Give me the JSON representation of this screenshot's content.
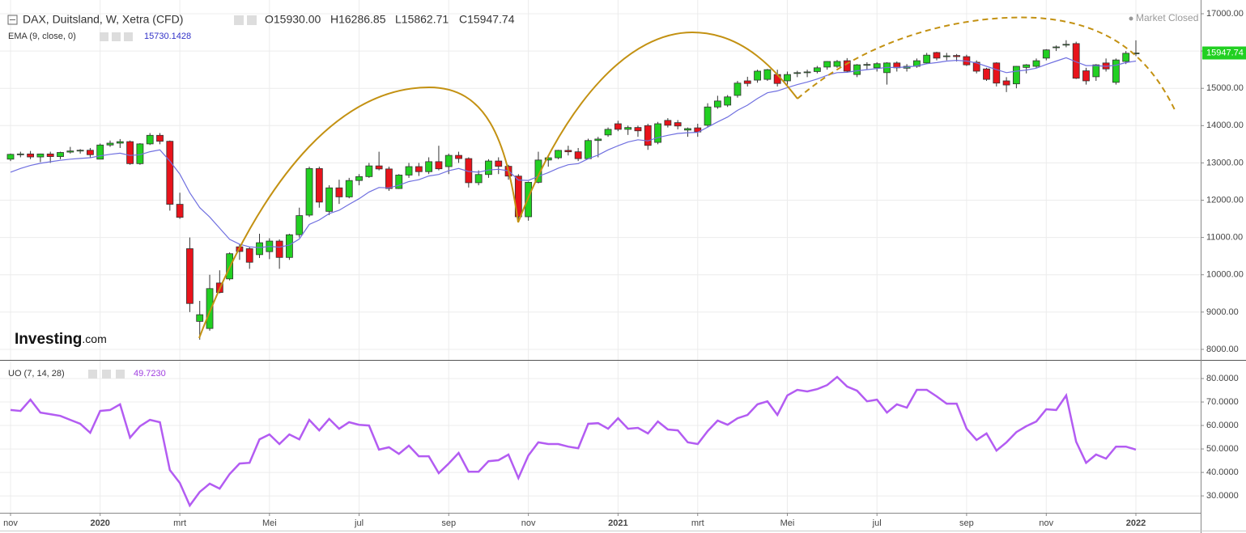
{
  "chart_data": [
    {
      "type": "candlestick",
      "title": "DAX, Duitsland, W, Xetra (CFD)",
      "status": "Market Closed",
      "ohlc_labels": [
        "O15930.00",
        "H16286.85",
        "L15862.71",
        "C15947.74"
      ],
      "brand": "Investing",
      "brand_suffix": ".com",
      "up_color": "#22d022",
      "down_color": "#e8131b",
      "open": [
        13100,
        13230,
        13240,
        13160,
        13240,
        13170,
        13290,
        13320,
        13340,
        13100,
        13480,
        13530,
        13570,
        12980,
        13510,
        13740,
        13580,
        11890,
        10700,
        8750,
        8560,
        9780,
        9890,
        10750,
        10700,
        10540,
        10620,
        10904,
        10465,
        11074,
        11600,
        12848,
        11700,
        12331,
        12089,
        12528,
        12633,
        12920,
        12838,
        12313,
        12674,
        12901,
        12765,
        13033,
        12900,
        13202,
        13116,
        12469,
        12689,
        13051,
        12909,
        12646,
        11556,
        12480,
        13077,
        13137,
        13336,
        13298,
        13114,
        13600,
        13750,
        14050,
        13900,
        13950,
        14000,
        13550,
        14140,
        14080,
        13880,
        13940,
        14010,
        14500,
        14550,
        14810,
        15200,
        15220,
        15240,
        15370,
        15200,
        15400,
        15420,
        15450,
        15570,
        15590,
        15740,
        15370,
        15630,
        15550,
        15420,
        15680,
        15540,
        15590,
        15680,
        15960,
        15850,
        15880,
        15850,
        15700,
        15520,
        15680,
        15200,
        15120,
        15560,
        15590,
        15810,
        16100,
        16170,
        16200,
        15470,
        15310,
        15680,
        15160,
        15720,
        15930
      ],
      "high": [
        13250,
        13300,
        13320,
        13250,
        13300,
        13300,
        13430,
        13370,
        13400,
        13520,
        13600,
        13640,
        13600,
        13530,
        13800,
        13800,
        13600,
        12200,
        11000,
        9300,
        10000,
        10120,
        10600,
        10820,
        10750,
        11100,
        10980,
        10950,
        11100,
        11800,
        12900,
        12900,
        12400,
        12550,
        12600,
        12700,
        13000,
        13300,
        12900,
        12700,
        13000,
        13000,
        13150,
        13460,
        13250,
        13300,
        13150,
        12800,
        13100,
        13150,
        12950,
        12700,
        12500,
        13300,
        13200,
        13350,
        13460,
        13400,
        13650,
        13700,
        13950,
        14130,
        14000,
        14000,
        14050,
        14100,
        14200,
        14150,
        13950,
        14050,
        14600,
        14800,
        14820,
        15200,
        15310,
        15500,
        15520,
        15500,
        15450,
        15470,
        15500,
        15600,
        15730,
        15760,
        15810,
        15650,
        15700,
        15700,
        15700,
        15720,
        15650,
        15800,
        15950,
        15980,
        15950,
        15920,
        15900,
        15750,
        15550,
        15700,
        15300,
        15600,
        15650,
        15800,
        16050,
        16150,
        16290,
        16250,
        15550,
        15650,
        15800,
        15800,
        16000,
        16286.85
      ],
      "low": [
        13050,
        13150,
        13100,
        13020,
        13000,
        13100,
        13250,
        13250,
        13150,
        13100,
        13430,
        13400,
        12950,
        12950,
        13480,
        13500,
        11720,
        11500,
        9000,
        8260,
        8500,
        9500,
        9850,
        10400,
        10160,
        10450,
        10420,
        10160,
        10400,
        11000,
        11550,
        11800,
        11600,
        11900,
        12050,
        12400,
        12600,
        12800,
        12250,
        12300,
        12600,
        12650,
        12700,
        12800,
        12700,
        13000,
        12340,
        12400,
        12600,
        12700,
        12550,
        11450,
        11450,
        12450,
        12900,
        13100,
        13200,
        13050,
        13100,
        13150,
        13700,
        13850,
        13750,
        13700,
        13350,
        13500,
        13950,
        13900,
        13700,
        13700,
        13950,
        14450,
        14500,
        14750,
        15050,
        15150,
        15200,
        15050,
        15100,
        15300,
        15300,
        15400,
        15500,
        15550,
        15420,
        15300,
        15500,
        15450,
        15100,
        15450,
        15450,
        15550,
        15650,
        15750,
        15750,
        15720,
        15600,
        15400,
        15200,
        15050,
        14900,
        15000,
        15400,
        15550,
        15750,
        16000,
        16100,
        15250,
        15100,
        15200,
        15450,
        15100,
        15650,
        15862.71
      ],
      "close": [
        13230,
        13240,
        13160,
        13240,
        13170,
        13280,
        13320,
        13340,
        13220,
        13480,
        13530,
        13570,
        12980,
        13510,
        13740,
        13580,
        11890,
        11540,
        9230,
        8930,
        9630,
        9525,
        10565,
        10625,
        10336,
        10860,
        10904,
        10465,
        11074,
        11587,
        12848,
        11949,
        12331,
        12089,
        12528,
        12633,
        12920,
        12838,
        12313,
        12674,
        12901,
        12765,
        13033,
        12842,
        13202,
        13116,
        12469,
        12689,
        13051,
        12909,
        12646,
        11556,
        12480,
        13077,
        13137,
        13336,
        13298,
        13114,
        13600,
        13640,
        13900,
        13900,
        13950,
        13860,
        13470,
        14050,
        14010,
        13990,
        13920,
        13830,
        14500,
        14660,
        14770,
        15140,
        15130,
        15460,
        15500,
        15130,
        15370,
        15420,
        15440,
        15550,
        15720,
        15720,
        15460,
        15630,
        15640,
        15660,
        15680,
        15550,
        15590,
        15740,
        15890,
        15810,
        15870,
        15850,
        15630,
        15460,
        15240,
        15140,
        15090,
        15590,
        15630,
        15740,
        16030,
        16110,
        16180,
        15270,
        15200,
        15630,
        15520,
        15760,
        15940,
        15947.74
      ],
      "series": [
        {
          "name": "EMA (9, close, 0)",
          "color": "#7070e0",
          "values": [
            12750,
            12850,
            12930,
            12990,
            13030,
            13070,
            13100,
            13120,
            13140,
            13190,
            13230,
            13260,
            13200,
            13220,
            13300,
            13350,
            13050,
            12700,
            12200,
            11800,
            11550,
            11250,
            10950,
            10820,
            10750,
            10730,
            10760,
            10740,
            10800,
            10960,
            11350,
            11470,
            11640,
            11730,
            11890,
            12040,
            12220,
            12340,
            12330,
            12400,
            12500,
            12550,
            12650,
            12690,
            12790,
            12850,
            12770,
            12750,
            12810,
            12830,
            12790,
            12540,
            12530,
            12640,
            12740,
            12860,
            12950,
            12980,
            13110,
            13210,
            13350,
            13460,
            13560,
            13620,
            13590,
            13680,
            13740,
            13790,
            13810,
            13820,
            13960,
            14100,
            14230,
            14410,
            14550,
            14730,
            14880,
            14930,
            15020,
            15100,
            15170,
            15250,
            15350,
            15420,
            15430,
            15470,
            15500,
            15530,
            15560,
            15560,
            15570,
            15600,
            15660,
            15690,
            15730,
            15750,
            15730,
            15680,
            15590,
            15500,
            15420,
            15460,
            15490,
            15540,
            15640,
            15730,
            15820,
            15710,
            15610,
            15610,
            15590,
            15620,
            15690,
            15730.1428
          ]
        }
      ],
      "ylim": [
        7717,
        17260
      ],
      "yticks": [
        {
          "value": 8000,
          "label": "8000.00"
        },
        {
          "value": 9000,
          "label": "9000.00"
        },
        {
          "value": 10000,
          "label": "10000.00"
        },
        {
          "value": 11000,
          "label": "11000.00"
        },
        {
          "value": 12000,
          "label": "12000.00"
        },
        {
          "value": 13000,
          "label": "13000.00"
        },
        {
          "value": 14000,
          "label": "14000.00"
        },
        {
          "value": 15000,
          "label": "15000.00"
        },
        {
          "value": 16000,
          "label": "16000.00"
        },
        {
          "value": 17000,
          "label": "17000.00"
        }
      ],
      "grid": true
    },
    {
      "type": "line",
      "series": [
        {
          "name": "UO (7, 14, 28)",
          "color": "#b35cf2",
          "last_label": "49.7230",
          "values": [
            66.6,
            66.2,
            71.0,
            65.5,
            64.8,
            64.1,
            62.4,
            60.7,
            56.9,
            66.2,
            66.6,
            69.0,
            54.8,
            59.7,
            62.4,
            61.4,
            41.0,
            35.5,
            25.9,
            31.7,
            35.2,
            33.1,
            39.3,
            43.8,
            44.1,
            54.1,
            56.2,
            52.1,
            56.2,
            54.1,
            62.4,
            57.9,
            62.8,
            58.6,
            61.4,
            60.3,
            60.0,
            49.7,
            50.7,
            47.9,
            51.4,
            46.9,
            46.9,
            39.7,
            43.8,
            48.3,
            40.3,
            40.3,
            44.8,
            45.2,
            47.6,
            37.6,
            47.2,
            52.8,
            52.1,
            52.1,
            51.0,
            50.3,
            60.7,
            61.0,
            58.6,
            63.1,
            58.6,
            59.0,
            56.6,
            61.7,
            58.3,
            57.9,
            52.8,
            52.1,
            57.6,
            62.1,
            60.3,
            63.1,
            64.5,
            69.0,
            70.3,
            64.5,
            72.8,
            75.2,
            74.5,
            75.5,
            77.2,
            80.7,
            76.6,
            74.8,
            70.3,
            71.0,
            65.5,
            69.0,
            67.6,
            75.2,
            75.2,
            72.4,
            69.3,
            69.3,
            58.6,
            53.8,
            56.6,
            49.3,
            52.8,
            57.2,
            59.7,
            61.7,
            66.9,
            66.6,
            72.8,
            53.1,
            44.1,
            47.6,
            45.9,
            51.0,
            51.0,
            49.723
          ]
        }
      ],
      "categories": [
        "nov",
        null,
        null,
        null,
        null,
        null,
        null,
        null,
        null,
        "2020",
        null,
        null,
        null,
        null,
        null,
        null,
        null,
        "mrt",
        null,
        null,
        null,
        null,
        null,
        null,
        null,
        null,
        "Mei",
        null,
        null,
        null,
        null,
        null,
        null,
        null,
        null,
        "jul",
        null,
        null,
        null,
        null,
        null,
        null,
        null,
        null,
        "sep",
        null,
        null,
        null,
        null,
        null,
        null,
        null,
        "nov",
        null,
        null,
        null,
        null,
        null,
        null,
        null,
        null,
        "2021",
        null,
        null,
        null,
        null,
        null,
        null,
        null,
        "mrt",
        null,
        null,
        null,
        null,
        null,
        null,
        null,
        null,
        "Mei",
        null,
        null,
        null,
        null,
        null,
        null,
        null,
        null,
        "jul",
        null,
        null,
        null,
        null,
        null,
        null,
        null,
        null,
        "sep",
        null,
        null,
        null,
        null,
        null,
        null,
        null,
        "nov",
        null,
        null,
        null,
        null,
        null,
        null,
        null,
        null,
        "2022"
      ],
      "ylim": [
        22.8,
        86.9
      ],
      "yticks": [
        {
          "value": 30,
          "label": "30.0000"
        },
        {
          "value": 40,
          "label": "40.0000"
        },
        {
          "value": 50,
          "label": "50.0000"
        },
        {
          "value": 60,
          "label": "60.0000"
        },
        {
          "value": 70,
          "label": "70.0000"
        },
        {
          "value": 80,
          "label": "80.0000"
        }
      ],
      "grid": true
    }
  ]
}
